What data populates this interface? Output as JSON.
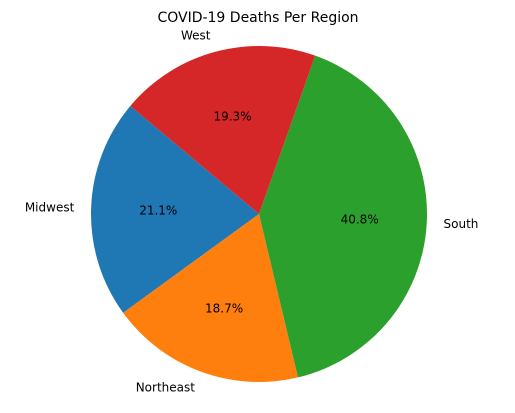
{
  "chart_data": {
    "type": "pie",
    "title": "COVID-19 Deaths Per Region",
    "labels": [
      "Midwest",
      "Northeast",
      "South",
      "West"
    ],
    "values": [
      21.1,
      18.7,
      40.8,
      19.3
    ],
    "percent_labels": [
      "21.1%",
      "18.7%",
      "40.8%",
      "19.3%"
    ],
    "colors": [
      "#1f77b4",
      "#ff7f0e",
      "#2ca02c",
      "#d62728"
    ],
    "start_angle_deg": 140,
    "direction": "counterclockwise"
  }
}
